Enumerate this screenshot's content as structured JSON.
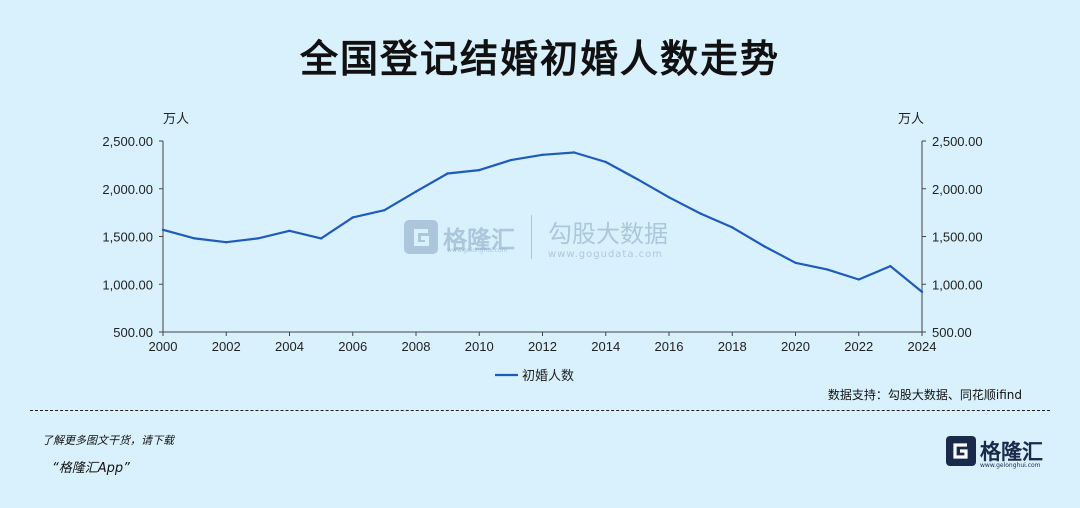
{
  "title": "全国登记结婚初婚人数走势",
  "unit_left": "万人",
  "unit_right": "万人",
  "source": "数据支持：勾股大数据、同花顺ifind",
  "promo_line1": "了解更多图文干货，请下载",
  "promo_line2": "“格隆汇App”",
  "logo_text": "格隆汇",
  "logo_url": "www.gelonghui.com",
  "watermark": {
    "brand": "格隆汇",
    "brand_url": "www.gelonghui.com",
    "partner": "勾股大数据",
    "partner_url": "www.gogudata.com"
  },
  "colors": {
    "background": "#d9f1fc",
    "line": "#1f5bbd",
    "axis": "#444444",
    "logo": "#1a2a4a"
  },
  "chart_data": {
    "type": "line",
    "title": "全国登记结婚初婚人数走势",
    "ylabel": "万人",
    "ylim": [
      500,
      2500
    ],
    "yticks": [
      "2,500.00",
      "2,000.00",
      "1,500.00",
      "1,000.00",
      "500.00"
    ],
    "ytick_values": [
      2500,
      2000,
      1500,
      1000,
      500
    ],
    "xticks": [
      "2000",
      "2002",
      "2004",
      "2006",
      "2008",
      "2010",
      "2012",
      "2014",
      "2016",
      "2018",
      "2020",
      "2022",
      "2024"
    ],
    "xlim": [
      2000,
      2024
    ],
    "legend_position": "bottom",
    "grid": false,
    "series": [
      {
        "name": "初婚人数",
        "x": [
          2000,
          2001,
          2002,
          2003,
          2004,
          2005,
          2006,
          2007,
          2008,
          2009,
          2010,
          2011,
          2012,
          2013,
          2014,
          2015,
          2016,
          2017,
          2018,
          2019,
          2020,
          2021,
          2022,
          2023,
          2024
        ],
        "values": [
          1570,
          1480,
          1440,
          1480,
          1560,
          1480,
          1700,
          1775,
          1970,
          2160,
          2195,
          2300,
          2355,
          2380,
          2280,
          2100,
          1910,
          1740,
          1595,
          1400,
          1225,
          1155,
          1050,
          1190,
          920
        ]
      }
    ]
  }
}
